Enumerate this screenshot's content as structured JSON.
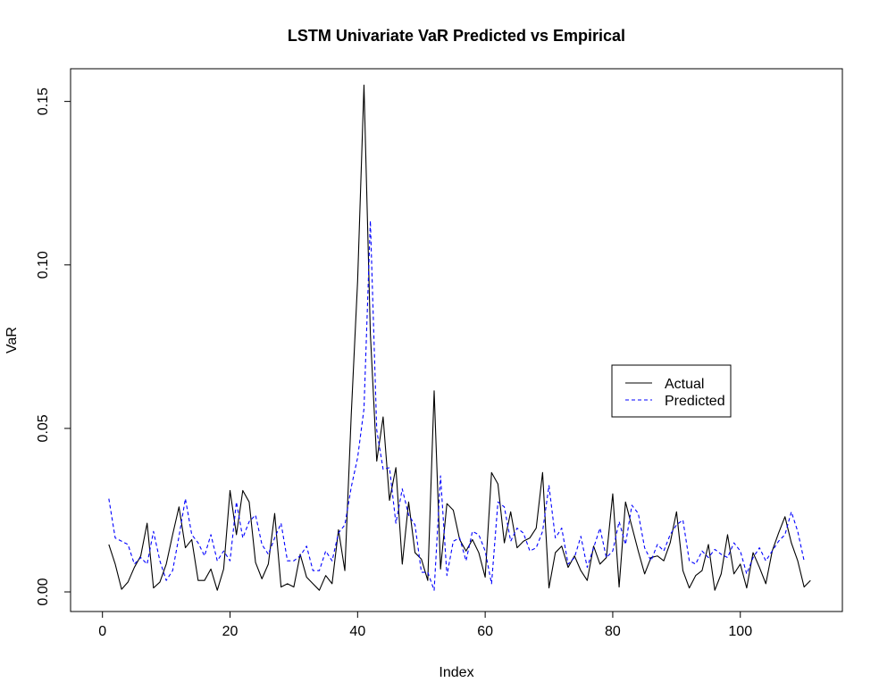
{
  "chart_data": {
    "type": "line",
    "title": "LSTM Univariate VaR Predicted vs Empirical",
    "xlabel": "Index",
    "ylabel": "VaR",
    "xlim": [
      -5,
      116
    ],
    "ylim": [
      -0.006,
      0.16
    ],
    "x_ticks": [
      0,
      20,
      40,
      60,
      80,
      100
    ],
    "x_tick_labels": [
      "0",
      "20",
      "40",
      "60",
      "80",
      "100"
    ],
    "y_ticks": [
      0.0,
      0.05,
      0.1,
      0.15
    ],
    "y_tick_labels": [
      "0.00",
      "0.05",
      "0.10",
      "0.15"
    ],
    "grid": false,
    "legend_position": "right",
    "series": [
      {
        "name": "Actual",
        "color": "#000000",
        "dash": "solid",
        "x_start": 1,
        "values": [
          0.0145,
          0.0085,
          0.0008,
          0.003,
          0.0075,
          0.011,
          0.021,
          0.0012,
          0.003,
          0.0085,
          0.0175,
          0.026,
          0.0135,
          0.016,
          0.0035,
          0.0035,
          0.007,
          0.0005,
          0.007,
          0.031,
          0.0175,
          0.031,
          0.0275,
          0.009,
          0.004,
          0.0085,
          0.024,
          0.0015,
          0.0025,
          0.0015,
          0.0115,
          0.0045,
          0.0025,
          0.0005,
          0.005,
          0.0025,
          0.019,
          0.0065,
          0.054,
          0.095,
          0.155,
          0.079,
          0.04,
          0.0535,
          0.028,
          0.038,
          0.0085,
          0.0275,
          0.012,
          0.01,
          0.0035,
          0.0615,
          0.007,
          0.027,
          0.025,
          0.016,
          0.0125,
          0.016,
          0.012,
          0.0045,
          0.0365,
          0.033,
          0.015,
          0.0245,
          0.0135,
          0.0155,
          0.0165,
          0.0195,
          0.0365,
          0.0012,
          0.012,
          0.014,
          0.0075,
          0.011,
          0.0065,
          0.0035,
          0.014,
          0.0085,
          0.0105,
          0.03,
          0.0015,
          0.0275,
          0.02,
          0.0125,
          0.0055,
          0.0105,
          0.011,
          0.0095,
          0.015,
          0.0245,
          0.0065,
          0.0012,
          0.005,
          0.0065,
          0.0145,
          0.0005,
          0.0055,
          0.0175,
          0.0055,
          0.0085,
          0.0012,
          0.012,
          0.0075,
          0.0025,
          0.0125,
          0.018,
          0.023,
          0.015,
          0.0095,
          0.0015,
          0.0035
        ]
      },
      {
        "name": "Predicted",
        "color": "#0000ff",
        "dash": "dashed",
        "x_start": 1,
        "values": [
          0.0285,
          0.0165,
          0.0155,
          0.0145,
          0.0085,
          0.0105,
          0.0085,
          0.0185,
          0.0095,
          0.0035,
          0.0065,
          0.017,
          0.0285,
          0.0175,
          0.015,
          0.011,
          0.0175,
          0.0095,
          0.0125,
          0.0095,
          0.0275,
          0.0165,
          0.0215,
          0.0235,
          0.0145,
          0.0115,
          0.0165,
          0.021,
          0.0095,
          0.0095,
          0.011,
          0.014,
          0.0065,
          0.0065,
          0.0125,
          0.0095,
          0.018,
          0.0205,
          0.032,
          0.041,
          0.056,
          0.1135,
          0.0495,
          0.0375,
          0.038,
          0.021,
          0.0315,
          0.0235,
          0.0205,
          0.006,
          0.006,
          0.0005,
          0.0355,
          0.005,
          0.0155,
          0.0165,
          0.0095,
          0.0185,
          0.0175,
          0.0125,
          0.0025,
          0.0275,
          0.026,
          0.0155,
          0.0195,
          0.018,
          0.0125,
          0.0135,
          0.0185,
          0.0325,
          0.0165,
          0.0195,
          0.0085,
          0.0105,
          0.017,
          0.0075,
          0.0135,
          0.0195,
          0.0105,
          0.0125,
          0.0215,
          0.0145,
          0.0265,
          0.024,
          0.0135,
          0.0095,
          0.0145,
          0.0125,
          0.0175,
          0.0205,
          0.022,
          0.0095,
          0.0085,
          0.0125,
          0.0105,
          0.013,
          0.0115,
          0.0105,
          0.015,
          0.0125,
          0.0055,
          0.0105,
          0.0135,
          0.0095,
          0.0125,
          0.0155,
          0.0175,
          0.0245,
          0.0185,
          0.0095
        ]
      }
    ]
  }
}
